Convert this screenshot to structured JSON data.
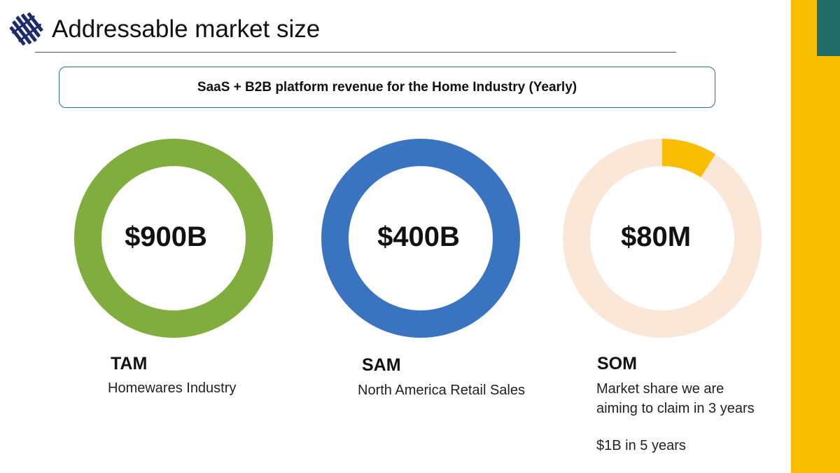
{
  "header": {
    "title": "Addressable market size"
  },
  "banner": {
    "text": "SaaS + B2B platform revenue for the Home Industry (Yearly)"
  },
  "colors": {
    "sidebar": "#fbbd00",
    "sidebar_accent": "#1f6b66",
    "tam": "#80ad3e",
    "sam": "#3a74c0",
    "som_track": "#fbe7d7",
    "som_fill": "#fbbd00",
    "logo": "#1d2a6b"
  },
  "markets": [
    {
      "id": "tam",
      "label": "TAM",
      "description": [
        "Homewares Industry"
      ],
      "note": ""
    },
    {
      "id": "sam",
      "label": "SAM",
      "description": [
        "North America Retail Sales"
      ],
      "note": ""
    },
    {
      "id": "som",
      "label": "SOM",
      "description": [
        "Market share we are",
        "aiming to claim in 3 years"
      ],
      "note": "$1B in 5 years"
    }
  ],
  "chart_data": [
    {
      "type": "pie",
      "variant": "donut",
      "center_label": "$900B",
      "series": [
        {
          "values": [
            100
          ]
        }
      ],
      "colors": [
        "#80ad3e"
      ]
    },
    {
      "type": "pie",
      "variant": "donut",
      "center_label": "$400B",
      "series": [
        {
          "values": [
            100
          ]
        }
      ],
      "colors": [
        "#3a74c0"
      ]
    },
    {
      "type": "pie",
      "variant": "donut",
      "center_label": "$80M",
      "series": [
        {
          "values": [
            9,
            91
          ]
        }
      ],
      "colors": [
        "#fbbd00",
        "#fbe7d7"
      ]
    }
  ]
}
